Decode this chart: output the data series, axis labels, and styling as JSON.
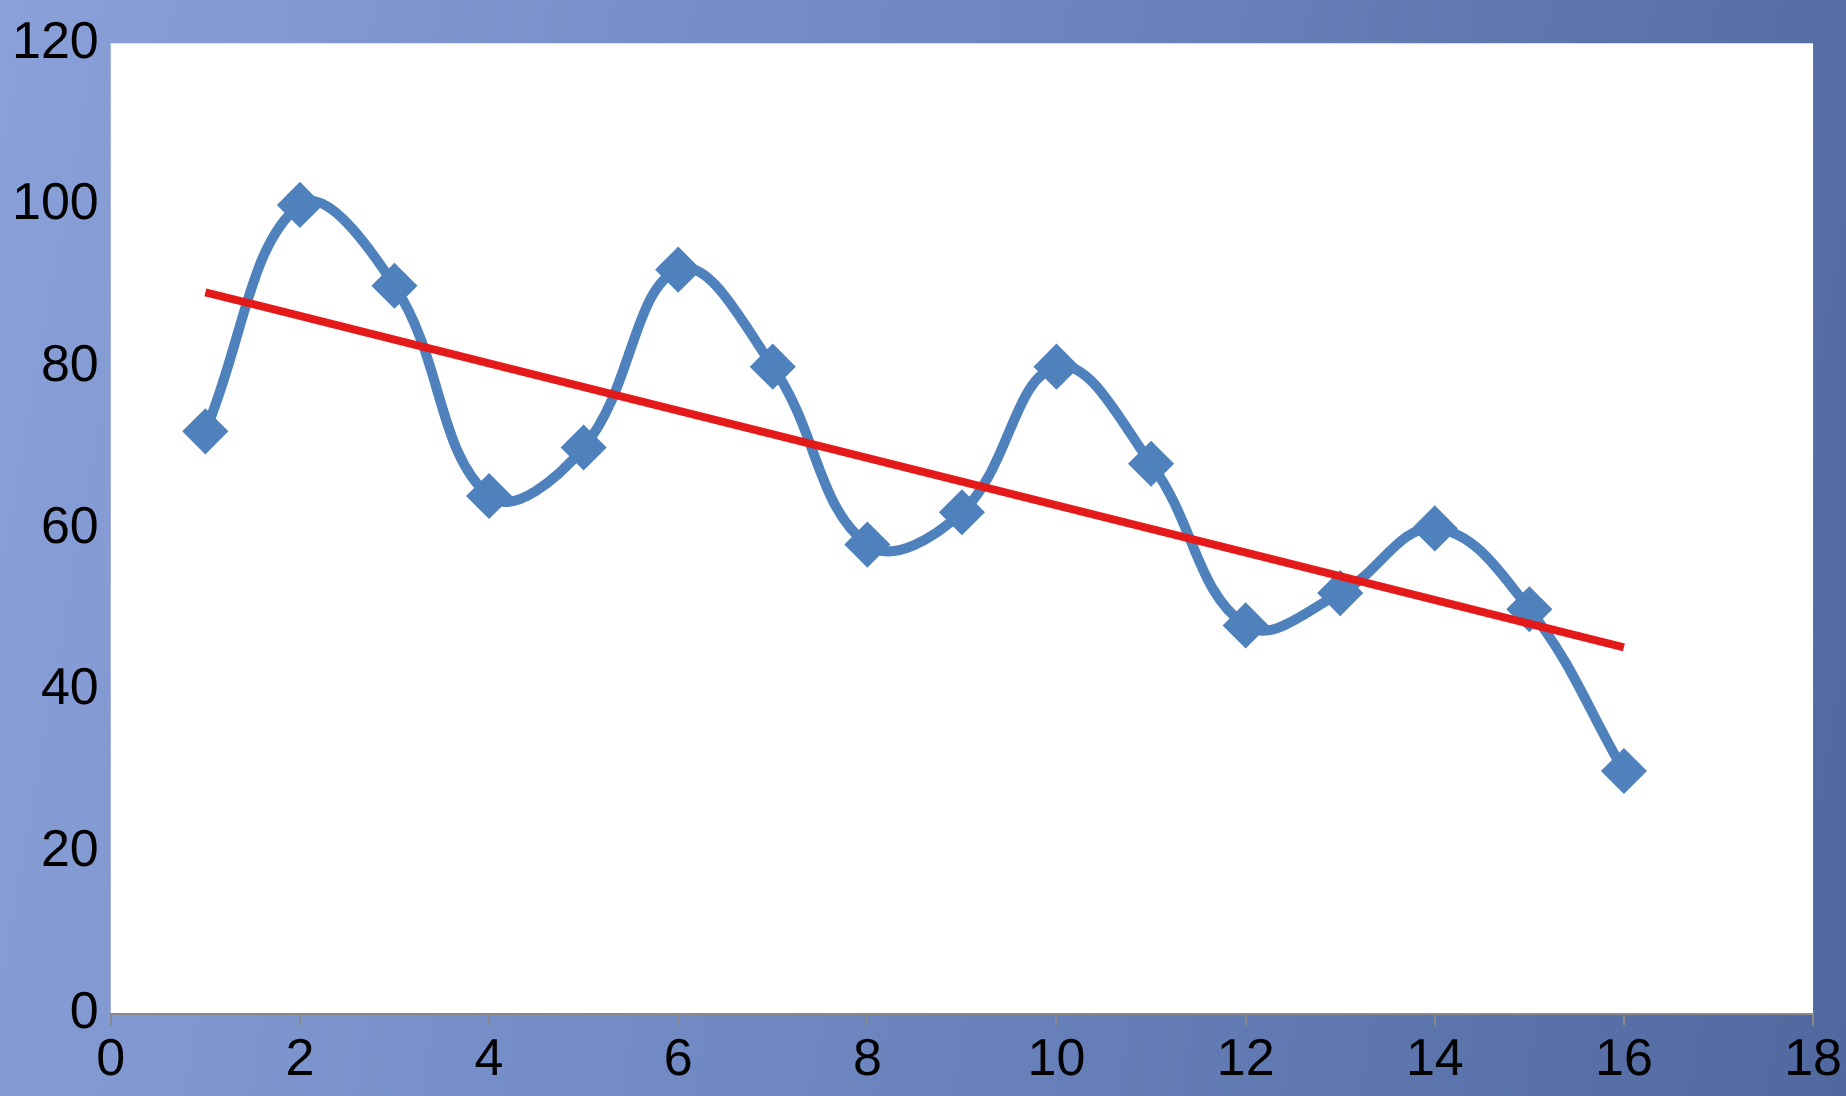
{
  "chart_data": {
    "type": "line",
    "xlim": [
      0,
      18
    ],
    "xticks": [
      0,
      2,
      4,
      6,
      8,
      10,
      12,
      14,
      16,
      18
    ],
    "ylim": [
      0,
      120
    ],
    "yticks": [
      0,
      20,
      40,
      60,
      80,
      100,
      120
    ],
    "grid": false,
    "legend": false,
    "series": [
      {
        "color": "#4f81bd",
        "marker": "diamond",
        "x": [
          1,
          2,
          3,
          4,
          5,
          6,
          7,
          8,
          9,
          10,
          11,
          12,
          13,
          14,
          15,
          16
        ],
        "values": [
          72,
          100,
          90,
          64,
          70,
          92,
          80,
          58,
          62,
          80,
          68,
          48,
          52,
          60,
          50,
          30
        ]
      },
      {
        "type": "line",
        "color": "#e41a1a",
        "marker": "none",
        "x": [
          1,
          16
        ],
        "values": [
          89.2,
          45.3
        ]
      }
    ]
  }
}
